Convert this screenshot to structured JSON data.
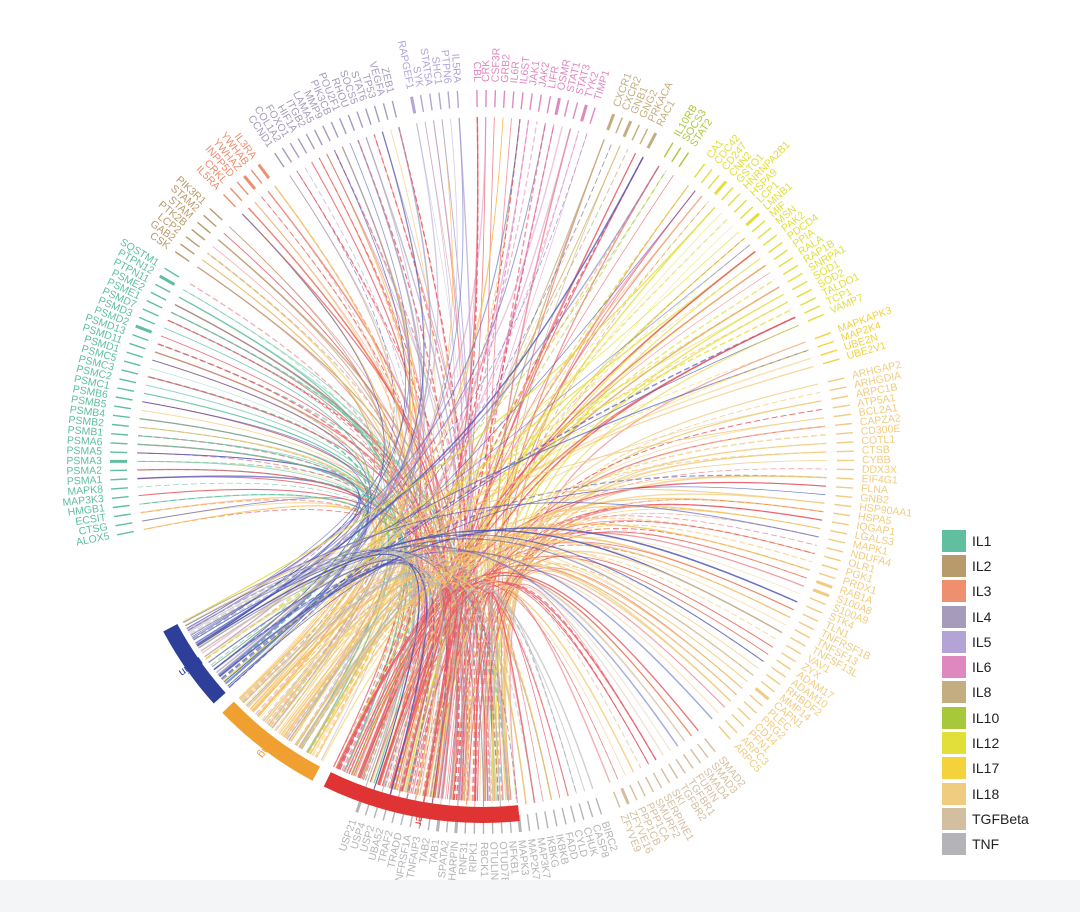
{
  "sources": [
    {
      "name": "Brain",
      "color": "#2e3f9a",
      "chord_color": "#4a54b8"
    },
    {
      "name": "Lung",
      "color": "#f0a030",
      "chord_color": "#f5c060"
    },
    {
      "name": "Liver",
      "color": "#e03434",
      "chord_color": "#e85a64"
    }
  ],
  "legend": [
    {
      "label": "IL1",
      "color": "#5fbf9f"
    },
    {
      "label": "IL2",
      "color": "#b99a6b"
    },
    {
      "label": "IL3",
      "color": "#ee8f70"
    },
    {
      "label": "IL4",
      "color": "#a79bbb"
    },
    {
      "label": "IL5",
      "color": "#b3a3d6"
    },
    {
      "label": "IL6",
      "color": "#df88c0"
    },
    {
      "label": "IL8",
      "color": "#c4ad80"
    },
    {
      "label": "IL10",
      "color": "#a8c83c"
    },
    {
      "label": "IL12",
      "color": "#e2de3a"
    },
    {
      "label": "IL17",
      "color": "#f4d23c"
    },
    {
      "label": "IL18",
      "color": "#f0cc80"
    },
    {
      "label": "TGFBeta",
      "color": "#d4bea0"
    },
    {
      "label": "TNF",
      "color": "#b4b4b8"
    }
  ],
  "groups": [
    {
      "pathway": "IL1",
      "genes": [
        "ALOX5",
        "CTSG",
        "ECSIT",
        "HMGB1",
        "MAP3K3",
        "MAPK8",
        "PSMA1",
        "PSMA2",
        "PSMA3",
        "PSMA5",
        "PSMA6",
        "PSMB1",
        "PSMB2",
        "PSMB4",
        "PSMB5",
        "PSMB6",
        "PSMC1",
        "PSMC2",
        "PSMC3",
        "PSMC5",
        "PSMD1",
        "PSMD11",
        "PSMD13",
        "PSMD2",
        "PSMD3",
        "PSMD7",
        "PSME1",
        "PSME2",
        "PTPN11",
        "PTPN12",
        "SQSTM1"
      ]
    },
    {
      "pathway": "IL2",
      "genes": [
        "CSK",
        "GAB2",
        "LCP2",
        "PTK2B",
        "STAM",
        "STAM2",
        "PIK3R1"
      ]
    },
    {
      "pathway": "IL3",
      "genes": [
        "IL5RA",
        "CRKL",
        "INPP5D",
        "YWHAZ",
        "YWHAB",
        "IL3RA"
      ]
    },
    {
      "pathway": "IL4",
      "genes": [
        "CCND1",
        "COL1A2",
        "FOXO1",
        "HIF1A",
        "ITGB2",
        "LAMA5",
        "MMP9",
        "PIK3CB",
        "POU2F1",
        "RHOU",
        "SOCS5",
        "STAT6",
        "TP53",
        "VEGFA",
        "ZEB1"
      ]
    },
    {
      "pathway": "IL5",
      "genes": [
        "RAPGEF1",
        "SYK",
        "STAT5A",
        "SHC1",
        "PTPN6",
        "IL5RA"
      ]
    },
    {
      "pathway": "IL6",
      "genes": [
        "CBL",
        "CRK",
        "CSF3R",
        "GRB2",
        "IL6R",
        "IL6ST",
        "JAK1",
        "JAK2",
        "LIFR",
        "OSMR",
        "STAT1",
        "STAT3",
        "TYK2",
        "TIMP1"
      ]
    },
    {
      "pathway": "IL8",
      "genes": [
        "CXCR1",
        "CXCR2",
        "GNB1",
        "GNG2",
        "PRKACA",
        "RAC1"
      ]
    },
    {
      "pathway": "IL10",
      "genes": [
        "IL10RB",
        "SOCS3",
        "STAT2"
      ]
    },
    {
      "pathway": "IL12",
      "genes": [
        "CA1",
        "CDC42",
        "CD247",
        "CNN2",
        "GSTO1",
        "HNRNPA2B1",
        "HSPA9",
        "LCP1",
        "LMNB1",
        "MIF",
        "MSN",
        "PAK2",
        "PDCD4",
        "PPIA",
        "RALA",
        "RAP1B",
        "SNRPA1",
        "SOD1",
        "SOD2",
        "TALDO1",
        "TCP1",
        "VAMP7"
      ]
    },
    {
      "pathway": "IL17",
      "genes": [
        "MAPKAPK3",
        "MAP2K4",
        "UBE2N",
        "UBE2V1"
      ]
    },
    {
      "pathway": "IL18",
      "genes": [
        "ARHGAP2",
        "ARHGDIA",
        "ARPC1B",
        "ATP5A1",
        "BCL2A1",
        "CAPZA2",
        "CD300E",
        "COTL1",
        "CTSB",
        "CYBB",
        "DDX3X",
        "EIF4G1",
        "FLNA",
        "GNB2",
        "HSP90AA1",
        "HSPA5",
        "IQGAP1",
        "LGALS3",
        "MAPK1",
        "NDUFA4",
        "OLR1",
        "PGK1",
        "PRDX1",
        "RAB1A",
        "S100A8",
        "S100A9",
        "STK4",
        "TLN1",
        "TNFRSF1B",
        "TNFSF13",
        "TNFSF13L",
        "VAV1",
        "ZYX",
        "ADAM17",
        "ADAM10",
        "RHBDF2",
        "MMP14",
        "CAPN1",
        "PLEC",
        "PRG2",
        "CD14",
        "PFN1",
        "ARPC3",
        "ARPC5"
      ]
    },
    {
      "pathway": "TGFBeta",
      "genes": [
        "SMAD2",
        "SMAD3",
        "SMAD4",
        "FURIN",
        "TGFBR1",
        "TGFBR2",
        "SKI",
        "SERPINE1",
        "SMURF2",
        "PPP1CA",
        "PPP1CB",
        "ZFYVE16",
        "ZFYVE9"
      ]
    },
    {
      "pathway": "TNF",
      "genes": [
        "BIRC2",
        "CASP8",
        "CHUK",
        "CYLD",
        "FADD",
        "IKBKB",
        "IKBKG",
        "MAP3K7",
        "MAP2K7",
        "MAPK3",
        "NFKB1",
        "OTUD7B",
        "OTULIN",
        "RBCK1",
        "RIPK1",
        "RNF31",
        "SHARPIN",
        "SPATA2",
        "TAB1",
        "TAB2",
        "TNFAIP3",
        "TNFRSF1A",
        "TRADD",
        "TRAF2",
        "UBA52",
        "USP2",
        "USP4",
        "USP21"
      ]
    }
  ]
}
